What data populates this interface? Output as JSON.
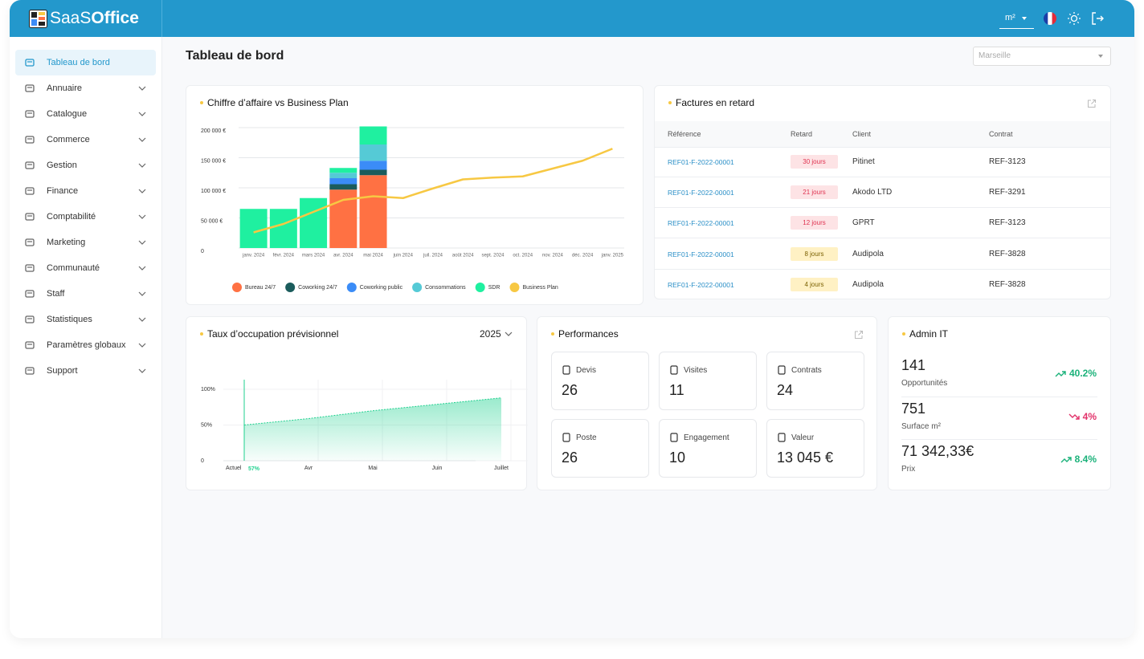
{
  "header": {
    "logo_light": "SaaS",
    "logo_bold": "Office",
    "unit": "m²"
  },
  "sidebar": {
    "items": [
      {
        "label": "Tableau de bord",
        "active": true
      },
      {
        "label": "Annuaire"
      },
      {
        "label": "Catalogue"
      },
      {
        "label": "Commerce"
      },
      {
        "label": "Gestion"
      },
      {
        "label": "Finance"
      },
      {
        "label": "Comptabilité"
      },
      {
        "label": "Marketing"
      },
      {
        "label": "Communauté"
      },
      {
        "label": "Staff"
      },
      {
        "label": "Statistiques"
      },
      {
        "label": "Paramètres globaux"
      },
      {
        "label": "Support"
      }
    ]
  },
  "page": {
    "title": "Tableau de bord",
    "city": "Marseille"
  },
  "chart_data": [
    {
      "type": "bar",
      "stacked": true,
      "title": "Chiffre d’affaire vs Business Plan",
      "categories": [
        "janv. 2024",
        "févr. 2024",
        "mars 2024",
        "avr. 2024",
        "mai 2024",
        "juin 2024",
        "juil. 2024",
        "août 2024",
        "sept. 2024",
        "oct. 2024",
        "nov. 2024",
        "déc. 2024",
        "janv. 2025"
      ],
      "series": [
        {
          "name": "Bureau 24/7",
          "color": "#ff7143",
          "values": [
            null,
            null,
            null,
            97000,
            121000,
            null,
            null,
            null,
            null,
            null,
            null,
            null,
            null
          ]
        },
        {
          "name": "Coworking 24/7",
          "color": "#1b5c5c",
          "values": [
            null,
            null,
            null,
            9000,
            9000,
            null,
            null,
            null,
            null,
            null,
            null,
            null,
            null
          ]
        },
        {
          "name": "Coworking public",
          "color": "#3b8cf7",
          "values": [
            null,
            null,
            null,
            10000,
            15000,
            null,
            null,
            null,
            null,
            null,
            null,
            null,
            null
          ]
        },
        {
          "name": "Consommations",
          "color": "#55cad6",
          "values": [
            null,
            null,
            null,
            9000,
            27000,
            null,
            null,
            null,
            null,
            null,
            null,
            null,
            null
          ]
        },
        {
          "name": "SDR",
          "color": "#1ff0a0",
          "values": [
            65000,
            65000,
            83000,
            8000,
            30000,
            null,
            null,
            null,
            null,
            null,
            null,
            null,
            null
          ]
        },
        {
          "name": "Business Plan",
          "color": "#f7c843",
          "type": "line",
          "values": [
            26000,
            40000,
            60000,
            80000,
            86000,
            83000,
            99000,
            114000,
            117000,
            119000,
            132000,
            145000,
            165000
          ]
        }
      ],
      "ylim": [
        0,
        210000
      ],
      "yticks": [
        0,
        {
          "value": 50000,
          "label": "50 000 €"
        },
        {
          "value": 100000,
          "label": "100 000 €"
        },
        {
          "value": 150000,
          "label": "150 000 €"
        },
        {
          "value": 200000,
          "label": "200 000 €"
        }
      ],
      "grid": true,
      "legend": "bottom"
    },
    {
      "type": "area",
      "title": "Taux d’occupation prévisionnel",
      "year": "2025",
      "categories": [
        "Actuel",
        "Avr",
        "Mai",
        "Juin",
        "Juillet"
      ],
      "values": [
        50,
        59,
        70,
        79,
        88
      ],
      "annotation": "57%",
      "color": "#1fd18f",
      "ylim": [
        0,
        100
      ],
      "yticks": [
        0,
        {
          "value": 50,
          "label": "50%"
        },
        {
          "value": 100,
          "label": "100%"
        }
      ],
      "grid": true
    }
  ],
  "invoices": {
    "title": "Factures en retard",
    "columns": [
      "Référence",
      "Retard",
      "Client",
      "Contrat"
    ],
    "rows": [
      {
        "ref": "REF01-F-2022-00001",
        "delay": "30 jours",
        "level": "danger",
        "client": "Pitinet",
        "contract": "REF-3123"
      },
      {
        "ref": "REF01-F-2022-00001",
        "delay": "21 jours",
        "level": "danger",
        "client": "Akodo LTD",
        "contract": "REF-3291"
      },
      {
        "ref": "REF01-F-2022-00001",
        "delay": "12 jours",
        "level": "danger",
        "client": "GPRT",
        "contract": "REF-3123"
      },
      {
        "ref": "REF01-F-2022-00001",
        "delay": "8 jours",
        "level": "warning",
        "client": "Audipola",
        "contract": "REF-3828"
      },
      {
        "ref": "REF01-F-2022-00001",
        "delay": "4 jours",
        "level": "warning",
        "client": "Audipola",
        "contract": "REF-3828"
      }
    ]
  },
  "performances": {
    "title": "Performances",
    "tiles": [
      {
        "label": "Devis",
        "value": 26
      },
      {
        "label": "Visites",
        "value": 11
      },
      {
        "label": "Contrats",
        "value": 24
      },
      {
        "label": "Poste",
        "value": 26
      },
      {
        "label": "Engagement",
        "value": 10
      },
      {
        "label": "Valeur",
        "value": "13 045 €"
      }
    ]
  },
  "admin_it": {
    "title": "Admin IT",
    "rows": [
      {
        "value": "141",
        "label": "Opportunités",
        "change": "40.2%",
        "trend": "up"
      },
      {
        "value": "751",
        "label": "Surface m²",
        "change": "4%",
        "trend": "down"
      },
      {
        "value": "71 342,33€",
        "label": "Prix",
        "change": "8.4%",
        "trend": "up"
      }
    ]
  }
}
